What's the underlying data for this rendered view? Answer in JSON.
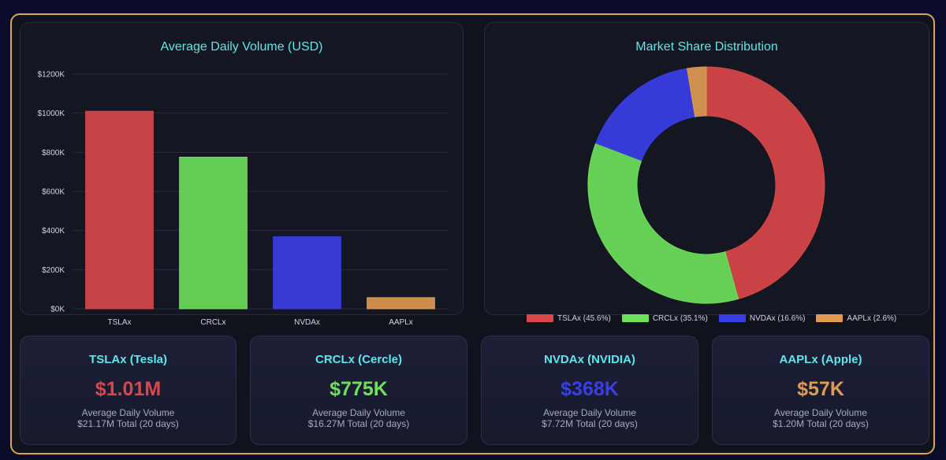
{
  "colors": {
    "TSLAx": "#d9474a",
    "CRCLx": "#6ee05b",
    "NVDAx": "#3a3ee6",
    "AAPLx": "#e09a52",
    "accent": "#5ee8ea",
    "border": "#e0a552"
  },
  "bar_panel": {
    "title": "Average Daily Volume (USD)"
  },
  "pie_panel": {
    "title": "Market Share Distribution"
  },
  "chart_data": [
    {
      "type": "bar",
      "title": "Average Daily Volume (USD)",
      "categories": [
        "TSLAx",
        "CRCLx",
        "NVDAx",
        "AAPLx"
      ],
      "values": [
        1010,
        775,
        368,
        57
      ],
      "ylim": [
        0,
        1200
      ],
      "yticks": [
        0,
        200,
        400,
        600,
        800,
        1000,
        1200
      ],
      "ytick_labels": [
        "$0K",
        "$200K",
        "$400K",
        "$600K",
        "$800K",
        "$1000K",
        "$1200K"
      ],
      "grid": true,
      "legend": "none"
    },
    {
      "type": "pie",
      "title": "Market Share Distribution",
      "categories": [
        "TSLAx",
        "CRCLx",
        "NVDAx",
        "AAPLx"
      ],
      "values": [
        45.6,
        35.1,
        16.6,
        2.6
      ],
      "legend_labels": [
        "TSLAx (45.6%)",
        "CRCLx (35.1%)",
        "NVDAx (16.6%)",
        "AAPLx (2.6%)"
      ],
      "donut": true,
      "legend": "bottom"
    }
  ],
  "cards": [
    {
      "title": "TSLAx (Tesla)",
      "value": "$1.01M",
      "subtitle": "Average Daily Volume",
      "total": "$21.17M Total (20 days)",
      "color": "#d9474a"
    },
    {
      "title": "CRCLx (Cercle)",
      "value": "$775K",
      "subtitle": "Average Daily Volume",
      "total": "$16.27M Total (20 days)",
      "color": "#6ee05b"
    },
    {
      "title": "NVDAx (NVIDIA)",
      "value": "$368K",
      "subtitle": "Average Daily Volume",
      "total": "$7.72M Total (20 days)",
      "color": "#3a3ee6"
    },
    {
      "title": "AAPLx (Apple)",
      "value": "$57K",
      "subtitle": "Average Daily Volume",
      "total": "$1.20M Total (20 days)",
      "color": "#e09a52"
    }
  ]
}
